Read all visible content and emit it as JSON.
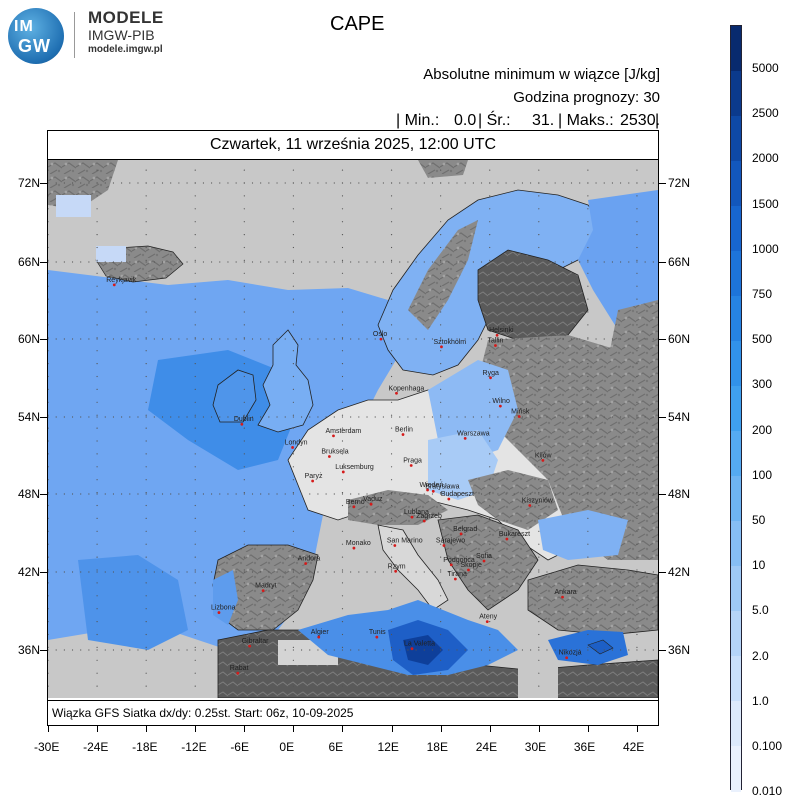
{
  "logo": {
    "line1": "IM",
    "line2": "GW",
    "name": "MODELE",
    "sub": "IMGW-PIB",
    "url": "modele.imgw.pl"
  },
  "title": "CAPE",
  "header": {
    "line1": "Absolutne minimum w wiązce [J/kg]",
    "line2": "Godzina prognozy: 30",
    "min_label": "| Min.:",
    "min_value": "0.0",
    "mean_label": "| Śr.:",
    "mean_value": "31.",
    "max_label": "| Maks.:",
    "max_value": "2530.",
    "end": "|"
  },
  "date": "Czwartek, 11 września 2025, 12:00 UTC",
  "footer": "Wiązka GFS Siatka dx/dy: 0.25st. Start: 06z, 10-09-2025",
  "lat_labels": [
    "72N",
    "66N",
    "60N",
    "54N",
    "48N",
    "42N",
    "36N"
  ],
  "lon_labels": [
    "-30E",
    "-24E",
    "-18E",
    "-12E",
    "-6E",
    "0E",
    "6E",
    "12E",
    "18E",
    "24E",
    "30E",
    "36E",
    "42E"
  ],
  "colorbar": {
    "labels": [
      "5000",
      "2500",
      "2000",
      "1500",
      "1000",
      "750",
      "500",
      "300",
      "200",
      "100",
      "50",
      "10",
      "5.0",
      "2.0",
      "1.0",
      "0.100",
      "0.010"
    ],
    "colors": [
      "#082a6e",
      "#0b3a8c",
      "#0e49a6",
      "#1257bc",
      "#1766cf",
      "#1d74da",
      "#2683e3",
      "#3192ea",
      "#3fa0ef",
      "#55aaf2",
      "#6eb4f3",
      "#86bef5",
      "#9ec9f6",
      "#b5d4f8",
      "#c9dffa",
      "#dce9fb",
      "#eaf1fd"
    ]
  },
  "cities": [
    {
      "name": "Reykjavik",
      "lon": -21.9,
      "lat": 64.1
    },
    {
      "name": "Oslo",
      "lon": 10.7,
      "lat": 59.9
    },
    {
      "name": "Sztokholm",
      "lon": 18.1,
      "lat": 59.3
    },
    {
      "name": "Helsinki",
      "lon": 24.9,
      "lat": 60.2
    },
    {
      "name": "Tallin",
      "lon": 24.7,
      "lat": 59.4
    },
    {
      "name": "Ryga",
      "lon": 24.1,
      "lat": 56.9
    },
    {
      "name": "Kopenhaga",
      "lon": 12.6,
      "lat": 55.7
    },
    {
      "name": "Wilno",
      "lon": 25.3,
      "lat": 54.7
    },
    {
      "name": "Mińsk",
      "lon": 27.6,
      "lat": 53.9
    },
    {
      "name": "Dublin",
      "lon": -6.3,
      "lat": 53.3
    },
    {
      "name": "Londyn",
      "lon": -0.1,
      "lat": 51.5
    },
    {
      "name": "Amsterdam",
      "lon": 4.9,
      "lat": 52.4
    },
    {
      "name": "Bruksela",
      "lon": 4.4,
      "lat": 50.8
    },
    {
      "name": "Berlin",
      "lon": 13.4,
      "lat": 52.5
    },
    {
      "name": "Warszawa",
      "lon": 21.0,
      "lat": 52.2
    },
    {
      "name": "Kijów",
      "lon": 30.5,
      "lat": 50.5
    },
    {
      "name": "Luksemburg",
      "lon": 6.1,
      "lat": 49.6
    },
    {
      "name": "Praga",
      "lon": 14.4,
      "lat": 50.1
    },
    {
      "name": "Paryż",
      "lon": 2.35,
      "lat": 48.9
    },
    {
      "name": "Wiedeń",
      "lon": 16.4,
      "lat": 48.2
    },
    {
      "name": "Bratysława",
      "lon": 17.1,
      "lat": 48.1
    },
    {
      "name": "Budapeszt",
      "lon": 19.0,
      "lat": 47.5
    },
    {
      "name": "Kiszyniów",
      "lon": 28.9,
      "lat": 47.0
    },
    {
      "name": "Berno",
      "lon": 7.4,
      "lat": 46.9
    },
    {
      "name": "Vaduz",
      "lon": 9.5,
      "lat": 47.1
    },
    {
      "name": "Lublana",
      "lon": 14.5,
      "lat": 46.1
    },
    {
      "name": "Zagrzeb",
      "lon": 16.0,
      "lat": 45.8
    },
    {
      "name": "Belgrad",
      "lon": 20.5,
      "lat": 44.8
    },
    {
      "name": "Bukareszt",
      "lon": 26.1,
      "lat": 44.4
    },
    {
      "name": "Sarajewo",
      "lon": 18.4,
      "lat": 43.9
    },
    {
      "name": "Monako",
      "lon": 7.4,
      "lat": 43.7
    },
    {
      "name": "San Marino",
      "lon": 12.4,
      "lat": 43.9
    },
    {
      "name": "Podgorica",
      "lon": 19.3,
      "lat": 42.4
    },
    {
      "name": "Sofia",
      "lon": 23.3,
      "lat": 42.7
    },
    {
      "name": "Skopje",
      "lon": 21.4,
      "lat": 42.0
    },
    {
      "name": "Tirana",
      "lon": 19.8,
      "lat": 41.3
    },
    {
      "name": "Andora",
      "lon": 1.5,
      "lat": 42.5
    },
    {
      "name": "Rzym",
      "lon": 12.5,
      "lat": 41.9
    },
    {
      "name": "Madryt",
      "lon": -3.7,
      "lat": 40.4
    },
    {
      "name": "Ankara",
      "lon": 32.9,
      "lat": 39.9
    },
    {
      "name": "Lizbona",
      "lon": -9.1,
      "lat": 38.7
    },
    {
      "name": "Ateny",
      "lon": 23.7,
      "lat": 38.0
    },
    {
      "name": "Algier",
      "lon": 3.1,
      "lat": 36.8
    },
    {
      "name": "Tunis",
      "lon": 10.2,
      "lat": 36.8
    },
    {
      "name": "Gibraltar",
      "lon": -5.35,
      "lat": 36.1
    },
    {
      "name": "La Valetta",
      "lon": 14.5,
      "lat": 35.9
    },
    {
      "name": "Nikozja",
      "lon": 33.4,
      "lat": 35.2
    },
    {
      "name": "Rabat",
      "lon": -6.8,
      "lat": 34.0
    }
  ]
}
